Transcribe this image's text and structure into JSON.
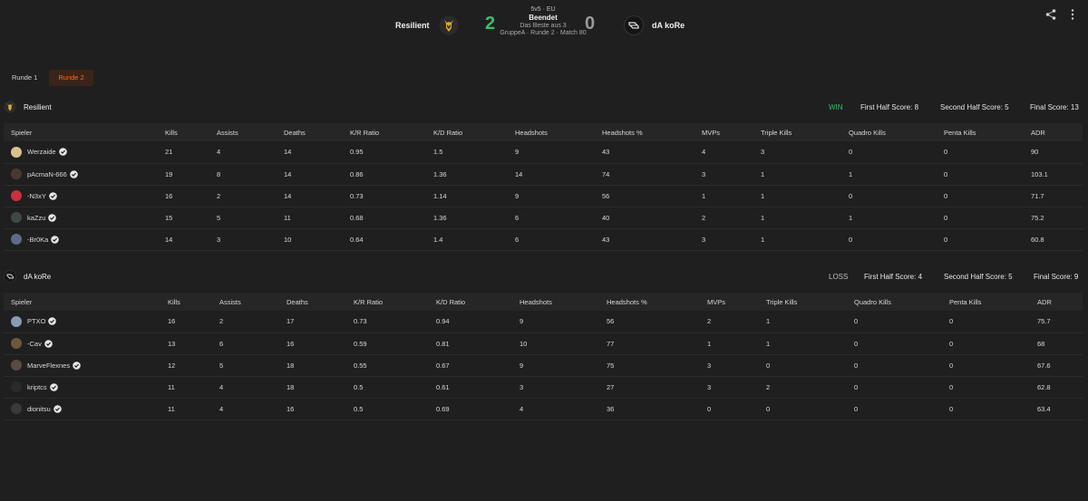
{
  "header": {
    "team_left": "Resilient",
    "score_left": "2",
    "format": "5v5 · EU",
    "status": "Beendet",
    "best_of": "Das Beste aus 3",
    "match_info": "GruppeA · Runde 2 · Match 80",
    "score_right": "0",
    "team_right": "dA koRe",
    "colors": {
      "win": "#36c16a",
      "lose": "#9a9a9a",
      "accent": "#ff6a1a"
    },
    "icons": {
      "share": "share-icon",
      "more": "more-vertical-icon"
    }
  },
  "tabs": [
    {
      "label": "Runde 1",
      "active": false
    },
    {
      "label": "Runde 2",
      "active": true
    }
  ],
  "columns": [
    "Spieler",
    "Kills",
    "Assists",
    "Deaths",
    "K/R Ratio",
    "K/D Ratio",
    "Headshots",
    "Headshots %",
    "MVPs",
    "Triple Kills",
    "Quadro Kills",
    "Penta Kills",
    "ADR"
  ],
  "teams": [
    {
      "name": "Resilient",
      "result": "WIN",
      "result_color": "#36c16a",
      "first_half": "First Half Score: 8",
      "second_half": "Second Half Score: 5",
      "final": "Final Score: 13",
      "players": [
        {
          "name": "Werzaide",
          "avatar_color": "#d9c28a",
          "stats": [
            "21",
            "4",
            "14",
            "0.95",
            "1.5",
            "9",
            "43",
            "4",
            "3",
            "0",
            "0",
            "90"
          ]
        },
        {
          "name": "pAcmaN-666",
          "avatar_color": "#4a3a2e",
          "stats": [
            "19",
            "8",
            "14",
            "0.86",
            "1.36",
            "14",
            "74",
            "3",
            "1",
            "1",
            "0",
            "103.1"
          ]
        },
        {
          "name": "-N3xY",
          "avatar_color": "#c8323c",
          "stats": [
            "16",
            "2",
            "14",
            "0.73",
            "1.14",
            "9",
            "56",
            "1",
            "1",
            "0",
            "0",
            "71.7"
          ]
        },
        {
          "name": "kaZzu",
          "avatar_color": "#3d4a44",
          "stats": [
            "15",
            "5",
            "11",
            "0.68",
            "1.36",
            "6",
            "40",
            "2",
            "1",
            "1",
            "0",
            "75.2"
          ]
        },
        {
          "name": "-Br0Ka",
          "avatar_color": "#5c6c86",
          "stats": [
            "14",
            "3",
            "10",
            "0.64",
            "1.4",
            "6",
            "43",
            "3",
            "1",
            "0",
            "0",
            "60.8"
          ]
        }
      ]
    },
    {
      "name": "dA koRe",
      "result": "LOSS",
      "result_color": "#bdbdbd",
      "first_half": "First Half Score: 4",
      "second_half": "Second Half Score: 5",
      "final": "Final Score: 9",
      "players": [
        {
          "name": "PTXO",
          "avatar_color": "#8a9bb5",
          "stats": [
            "16",
            "2",
            "17",
            "0.73",
            "0.94",
            "9",
            "56",
            "2",
            "1",
            "0",
            "0",
            "75.7"
          ]
        },
        {
          "name": "-Cav",
          "avatar_color": "#6b5a3a",
          "stats": [
            "13",
            "6",
            "16",
            "0.59",
            "0.81",
            "10",
            "77",
            "1",
            "1",
            "0",
            "0",
            "68"
          ]
        },
        {
          "name": "MarveFlexnes",
          "avatar_color": "#5a4a44",
          "stats": [
            "12",
            "5",
            "18",
            "0.55",
            "0.67",
            "9",
            "75",
            "3",
            "0",
            "0",
            "0",
            "67.6"
          ]
        },
        {
          "name": "kriptcs",
          "avatar_color": "#2a2a2a",
          "stats": [
            "11",
            "4",
            "18",
            "0.5",
            "0.61",
            "3",
            "27",
            "3",
            "2",
            "0",
            "0",
            "62.8"
          ]
        },
        {
          "name": "dionitsu",
          "avatar_color": "#3a3a3a",
          "stats": [
            "11",
            "4",
            "16",
            "0.5",
            "0.69",
            "4",
            "36",
            "0",
            "0",
            "0",
            "0",
            "63.4"
          ]
        }
      ]
    }
  ]
}
